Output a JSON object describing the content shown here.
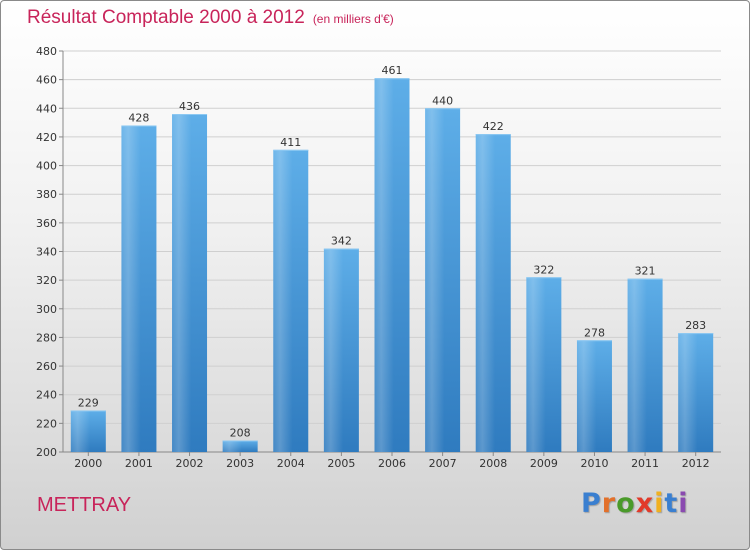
{
  "chart_data": {
    "type": "bar",
    "title": "Résultat Comptable 2000 à 2012",
    "subtitle": "(en milliers d'€)",
    "xlabel": "",
    "ylabel": "",
    "categories": [
      "2000",
      "2001",
      "2002",
      "2003",
      "2004",
      "2005",
      "2006",
      "2007",
      "2008",
      "2009",
      "2010",
      "2011",
      "2012"
    ],
    "values": [
      229,
      428,
      436,
      208,
      411,
      342,
      461,
      440,
      422,
      322,
      278,
      321,
      283
    ],
    "ylim": [
      200,
      480
    ],
    "yticks": [
      200,
      220,
      240,
      260,
      280,
      300,
      320,
      340,
      360,
      380,
      400,
      420,
      440,
      460,
      480
    ],
    "grid": true,
    "bar_color": "#3f92d4"
  },
  "footer": {
    "town": "METTRAY"
  },
  "brand": {
    "letters": [
      "P",
      "r",
      "o",
      "x",
      "i",
      "t",
      "i"
    ],
    "colors": [
      "#3a7fd0",
      "#e2702a",
      "#4a9a2a",
      "#e23a2a",
      "#f0b020",
      "#3a7fd0",
      "#8a4ab0"
    ]
  }
}
